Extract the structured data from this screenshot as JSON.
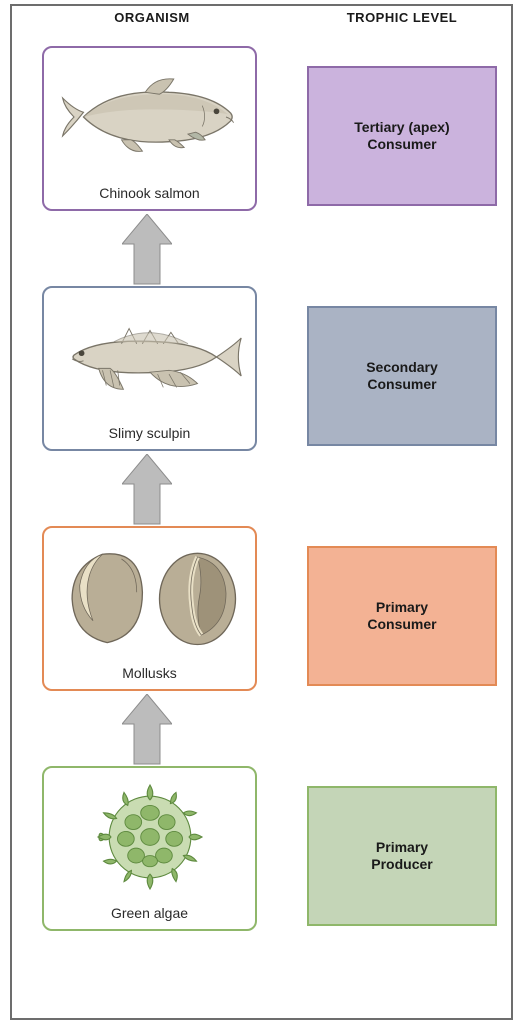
{
  "headers": {
    "organism": "ORGANISM",
    "trophic": "TROPHIC LEVEL"
  },
  "arrow": {
    "fill": "#bcbcbc",
    "stroke": "#8c8c8c",
    "stroke_width": 1
  },
  "illustration_palette": {
    "fish_body": "#d9d3c4",
    "fish_outline": "#7a7568",
    "fish_light": "#efece3",
    "shell_main": "#b9ae96",
    "shell_band": "#e9e0c6",
    "shell_outline": "#6f6759",
    "algae_fill": "#8fb76a",
    "algae_outline": "#5e8a3f"
  },
  "levels": [
    {
      "key": "tertiary",
      "organism_label": "Chinook salmon",
      "trophic_label": "Tertiary (apex)\nConsumer",
      "organism_border": "#8e6aa8",
      "trophic_fill": "#cbb3dd",
      "trophic_border": "#8e6aa8",
      "illustration": "salmon"
    },
    {
      "key": "secondary",
      "organism_label": "Slimy sculpin",
      "trophic_label": "Secondary\nConsumer",
      "organism_border": "#7787a3",
      "trophic_fill": "#aab3c4",
      "trophic_border": "#7787a3",
      "illustration": "sculpin"
    },
    {
      "key": "primary_consumer",
      "organism_label": "Mollusks",
      "trophic_label": "Primary\nConsumer",
      "organism_border": "#e38a55",
      "trophic_fill": "#f3b294",
      "trophic_border": "#e38a55",
      "illustration": "mollusks"
    },
    {
      "key": "primary_producer",
      "organism_label": "Green algae",
      "trophic_label": "Primary\nProducer",
      "organism_border": "#8fb76a",
      "trophic_fill": "#c4d5b7",
      "trophic_border": "#8fb76a",
      "illustration": "algae"
    }
  ]
}
